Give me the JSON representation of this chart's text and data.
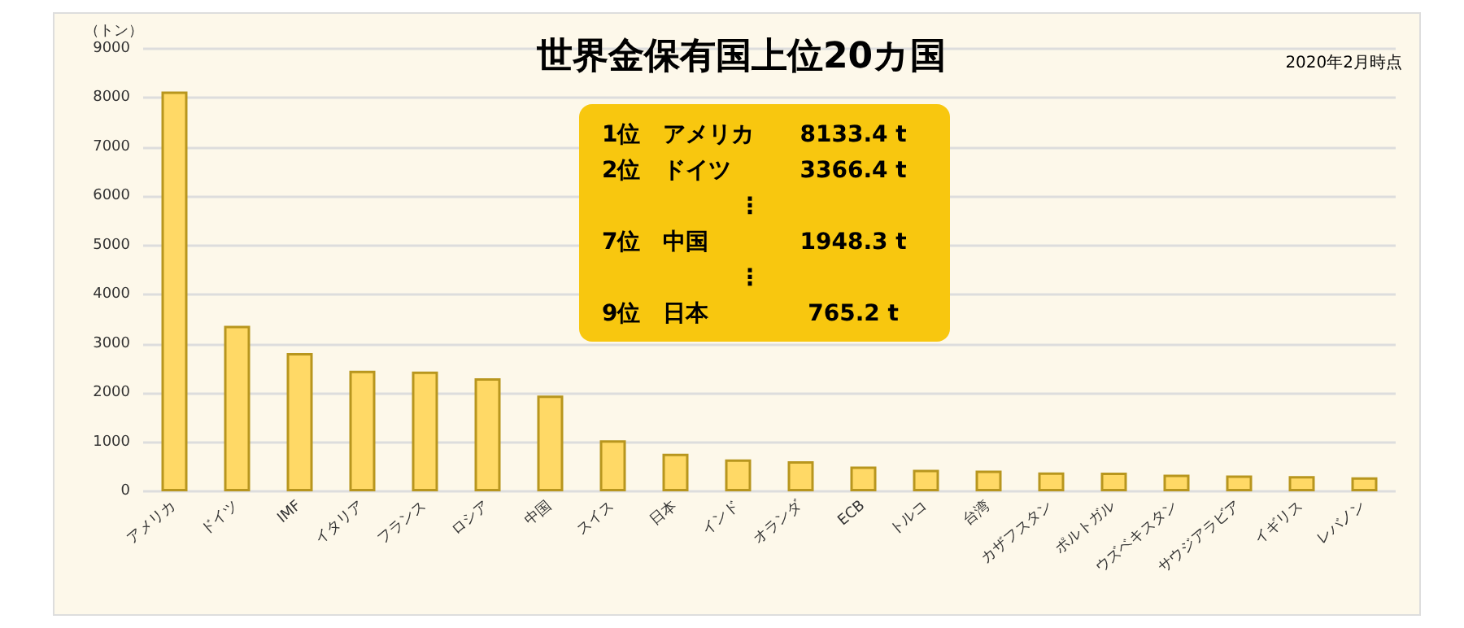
{
  "chart_data": {
    "type": "bar",
    "title": "世界金保有国上位20カ国",
    "ylabel": "（トン）",
    "annotations": [
      "2020年2月時点",
      "1位　アメリカ　　8133.4 t\n2位　ドイツ　　　3366.4 t\n　　　　　　⋮\n7位　中国　　　　1948.3 t\n　　　　　　⋮\n9位　日本　　　　 765.2 t"
    ],
    "categories": [
      "アメリカ",
      "ドイツ",
      "IMF",
      "イタリア",
      "フランス",
      "ロシア",
      "中国",
      "スイス",
      "日本",
      "インド",
      "オランダ",
      "ECB",
      "トルコ",
      "台湾",
      "カザフスタン",
      "ポルトガル",
      "ウズベキスタン",
      "サウジアラビア",
      "イギリス",
      "レバノン"
    ],
    "values": [
      8133.4,
      3366.4,
      2814,
      2452,
      2436,
      2299,
      1948.3,
      1040,
      765.2,
      650,
      612,
      504,
      440,
      422,
      385,
      382,
      338,
      323,
      310,
      287
    ],
    "color": "#ffd966",
    "ylim": [
      0,
      9000
    ],
    "yticks": [
      0,
      1000,
      2000,
      3000,
      4000,
      5000,
      6000,
      7000,
      8000,
      9000
    ],
    "grid": "y"
  }
}
